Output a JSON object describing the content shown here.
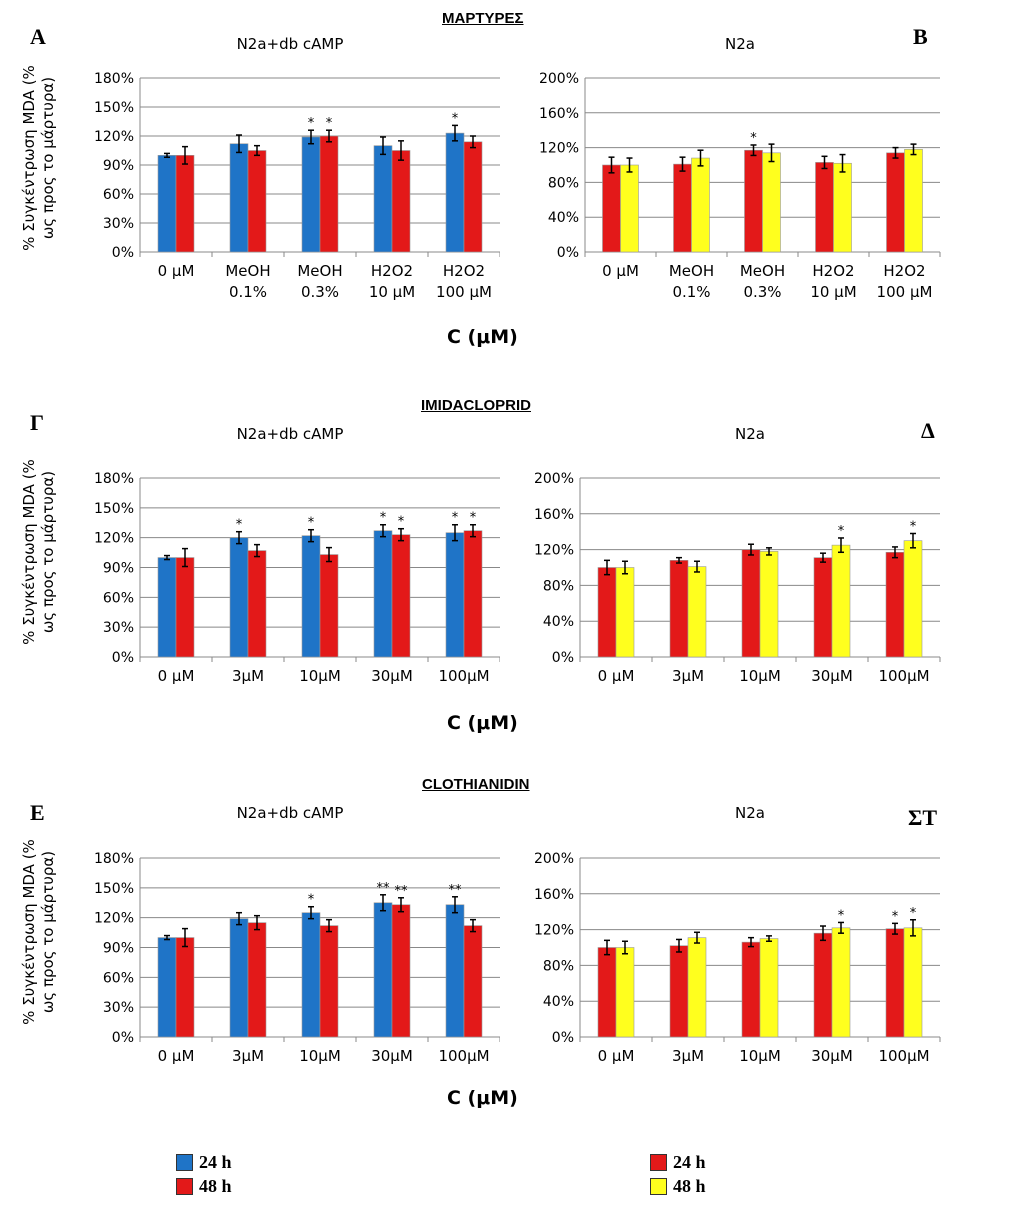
{
  "colors": {
    "blue": "#1f74c7",
    "red": "#e31919",
    "yellow": "#ffff1e"
  },
  "sections": [
    {
      "title": "ΜΑΡΤΥΡΕΣ",
      "xlabel": "C (μM)"
    },
    {
      "title": "IMIDACLOPRID",
      "xlabel": "C (μM)"
    },
    {
      "title": "CLOTHIANIDIN",
      "xlabel": "C (μM)"
    }
  ],
  "ylabel_lines": [
    "% Συγκέντρωση MDA (%",
    "ως προς το μάρτυρα)"
  ],
  "chart_data": [
    {
      "type": "bar",
      "letter": "A",
      "title": "N2a+db cAMP",
      "categories": [
        [
          "0 μM"
        ],
        [
          "MeOH",
          "0.1%"
        ],
        [
          "MeOH",
          "0.3%"
        ],
        [
          "H2O2",
          "10 μM"
        ],
        [
          "H2O2",
          "100 μM"
        ]
      ],
      "yticks": [
        "0%",
        "30%",
        "60%",
        "90%",
        "120%",
        "150%",
        "180%"
      ],
      "ylim": [
        0,
        180
      ],
      "series": [
        {
          "name": "24 h",
          "color": "#1f74c7",
          "values": [
            100,
            112,
            119,
            110,
            123
          ],
          "errors": [
            2,
            9,
            7,
            9,
            8
          ],
          "marks": [
            "",
            "",
            "*",
            "",
            "*"
          ]
        },
        {
          "name": "48 h",
          "color": "#e31919",
          "values": [
            100,
            105,
            120,
            105,
            114
          ],
          "errors": [
            9,
            5,
            6,
            10,
            6
          ],
          "marks": [
            "",
            "",
            "*",
            "",
            ""
          ]
        }
      ]
    },
    {
      "type": "bar",
      "letter": "B",
      "title": "N2a",
      "categories": [
        [
          "0 μM"
        ],
        [
          "MeOH",
          "0.1%"
        ],
        [
          "MeOH",
          "0.3%"
        ],
        [
          "H2O2",
          "10 μM"
        ],
        [
          "H2O2",
          "100 μM"
        ]
      ],
      "yticks": [
        "0%",
        "40%",
        "80%",
        "120%",
        "160%",
        "200%"
      ],
      "ylim": [
        0,
        200
      ],
      "series": [
        {
          "name": "24 h",
          "color": "#e31919",
          "values": [
            100,
            101,
            117,
            103,
            114
          ],
          "errors": [
            9,
            8,
            6,
            7,
            6
          ],
          "marks": [
            "",
            "",
            "*",
            "",
            ""
          ]
        },
        {
          "name": "48 h",
          "color": "#ffff1e",
          "values": [
            100,
            108,
            114,
            102,
            118
          ],
          "errors": [
            8,
            9,
            10,
            10,
            6
          ],
          "marks": [
            "",
            "",
            "",
            "",
            ""
          ]
        }
      ]
    },
    {
      "type": "bar",
      "letter": "Γ",
      "title": "N2a+db cAMP",
      "categories": [
        [
          "0 μM"
        ],
        [
          "3μM"
        ],
        [
          "10μM"
        ],
        [
          "30μM"
        ],
        [
          "100μM"
        ]
      ],
      "yticks": [
        "0%",
        "30%",
        "60%",
        "90%",
        "120%",
        "150%",
        "180%"
      ],
      "ylim": [
        0,
        180
      ],
      "series": [
        {
          "name": "24 h",
          "color": "#1f74c7",
          "values": [
            100,
            120,
            122,
            127,
            125
          ],
          "errors": [
            2,
            6,
            6,
            6,
            8
          ],
          "marks": [
            "",
            "*",
            "*",
            "*",
            "*"
          ]
        },
        {
          "name": "48 h",
          "color": "#e31919",
          "values": [
            100,
            107,
            103,
            123,
            127
          ],
          "errors": [
            9,
            6,
            7,
            6,
            6
          ],
          "marks": [
            "",
            "",
            "",
            "*",
            "*"
          ]
        }
      ]
    },
    {
      "type": "bar",
      "letter": "Δ",
      "title": "N2a",
      "categories": [
        [
          "0 μM"
        ],
        [
          "3μM"
        ],
        [
          "10μM"
        ],
        [
          "30μM"
        ],
        [
          "100μM"
        ]
      ],
      "yticks": [
        "0%",
        "40%",
        "80%",
        "120%",
        "160%",
        "200%"
      ],
      "ylim": [
        0,
        200
      ],
      "series": [
        {
          "name": "24 h",
          "color": "#e31919",
          "values": [
            100,
            108,
            120,
            111,
            117
          ],
          "errors": [
            8,
            3,
            6,
            5,
            6
          ],
          "marks": [
            "",
            "",
            "",
            "",
            ""
          ]
        },
        {
          "name": "48 h",
          "color": "#ffff1e",
          "values": [
            100,
            101,
            118,
            125,
            130
          ],
          "errors": [
            7,
            6,
            4,
            8,
            8
          ],
          "marks": [
            "",
            "",
            "",
            "*",
            "*"
          ]
        }
      ]
    },
    {
      "type": "bar",
      "letter": "Ε",
      "title": "N2a+db cAMP",
      "categories": [
        [
          "0 μM"
        ],
        [
          "3μM"
        ],
        [
          "10μM"
        ],
        [
          "30μM"
        ],
        [
          "100μM"
        ]
      ],
      "yticks": [
        "0%",
        "30%",
        "60%",
        "90%",
        "120%",
        "150%",
        "180%"
      ],
      "ylim": [
        0,
        180
      ],
      "series": [
        {
          "name": "24 h",
          "color": "#1f74c7",
          "values": [
            100,
            119,
            125,
            135,
            133
          ],
          "errors": [
            2,
            6,
            6,
            8,
            8
          ],
          "marks": [
            "",
            "",
            "*",
            "**",
            "**"
          ]
        },
        {
          "name": "48 h",
          "color": "#e31919",
          "values": [
            100,
            115,
            112,
            133,
            112
          ],
          "errors": [
            9,
            7,
            6,
            7,
            6
          ],
          "marks": [
            "",
            "",
            "",
            "**",
            ""
          ]
        }
      ]
    },
    {
      "type": "bar",
      "letter": "ΣΤ",
      "title": "N2a",
      "categories": [
        [
          "0 μM"
        ],
        [
          "3μM"
        ],
        [
          "10μM"
        ],
        [
          "30μM"
        ],
        [
          "100μM"
        ]
      ],
      "yticks": [
        "0%",
        "40%",
        "80%",
        "120%",
        "160%",
        "200%"
      ],
      "ylim": [
        0,
        200
      ],
      "series": [
        {
          "name": "24 h",
          "color": "#e31919",
          "values": [
            100,
            102,
            106,
            116,
            121
          ],
          "errors": [
            8,
            7,
            5,
            8,
            6
          ],
          "marks": [
            "",
            "",
            "",
            "",
            "*"
          ]
        },
        {
          "name": "48 h",
          "color": "#ffff1e",
          "values": [
            100,
            111,
            110,
            122,
            122
          ],
          "errors": [
            7,
            6,
            3,
            6,
            9
          ],
          "marks": [
            "",
            "",
            "",
            "*",
            "*"
          ]
        }
      ]
    }
  ],
  "legends": [
    {
      "items": [
        {
          "label": "24 h",
          "color": "#1f74c7"
        },
        {
          "label": "48 h",
          "color": "#e31919"
        }
      ]
    },
    {
      "items": [
        {
          "label": "24 h",
          "color": "#e31919"
        },
        {
          "label": "48 h",
          "color": "#ffff1e"
        }
      ]
    }
  ]
}
